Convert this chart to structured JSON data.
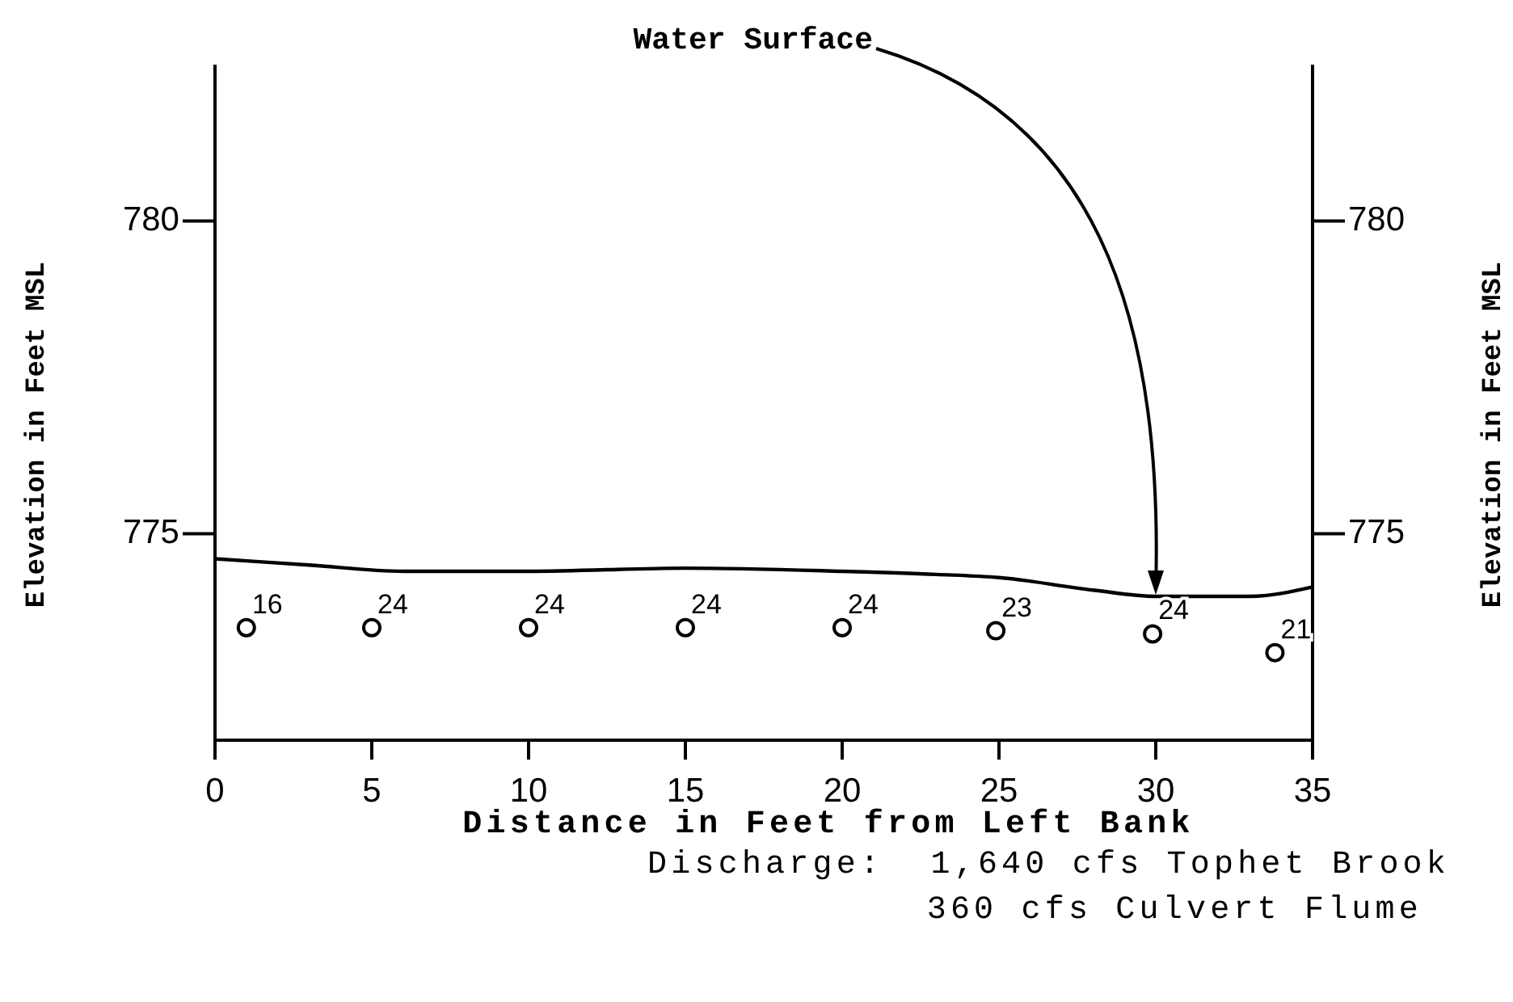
{
  "chart_data": {
    "type": "scatter",
    "xlabel": "Distance in Feet from Left Bank",
    "ylabel": "Elevation in Feet MSL",
    "y2label": "Elevation in Feet MSL",
    "xlim": [
      0,
      35
    ],
    "xticks": [
      0,
      5,
      10,
      15,
      20,
      25,
      30,
      35
    ],
    "ylim": [
      771.7,
      782.5
    ],
    "yticks": [
      775,
      780
    ],
    "y2lim": [
      771.7,
      782.5
    ],
    "y2ticks": [
      775,
      780
    ],
    "series": [
      {
        "type": "line",
        "color": "#000000",
        "marker": "none",
        "line_style": "solid",
        "x": [
          0,
          3,
          6,
          10,
          15,
          20,
          23,
          25,
          28,
          30,
          33,
          35
        ],
        "values": [
          774.6,
          774.5,
          774.4,
          774.4,
          774.45,
          774.4,
          774.35,
          774.3,
          774.1,
          774.0,
          774.0,
          774.15
        ]
      },
      {
        "color": "#000000",
        "marker": "circle",
        "x": [
          1,
          5,
          10,
          15,
          20,
          24.9,
          29.9,
          33.8
        ],
        "values": [
          773.5,
          773.5,
          773.5,
          773.5,
          773.5,
          773.45,
          773.4,
          773.1
        ]
      }
    ],
    "annotations": [
      {
        "text": "Water Surface",
        "x": 30,
        "y": 774.0
      },
      {
        "text": "16",
        "x": 1,
        "y": 773.5
      },
      {
        "text": "24",
        "x": 5,
        "y": 773.5
      },
      {
        "text": "24",
        "x": 10,
        "y": 773.5
      },
      {
        "text": "24",
        "x": 15,
        "y": 773.5
      },
      {
        "text": "24",
        "x": 20,
        "y": 773.5
      },
      {
        "text": "23",
        "x": 24.9,
        "y": 773.45
      },
      {
        "text": "24",
        "x": 29.9,
        "y": 773.4
      },
      {
        "text": "21",
        "x": 33.8,
        "y": 773.1
      },
      "Discharge:  1,640 cfs Tophet Brook",
      "360 cfs Culvert Flume"
    ]
  }
}
